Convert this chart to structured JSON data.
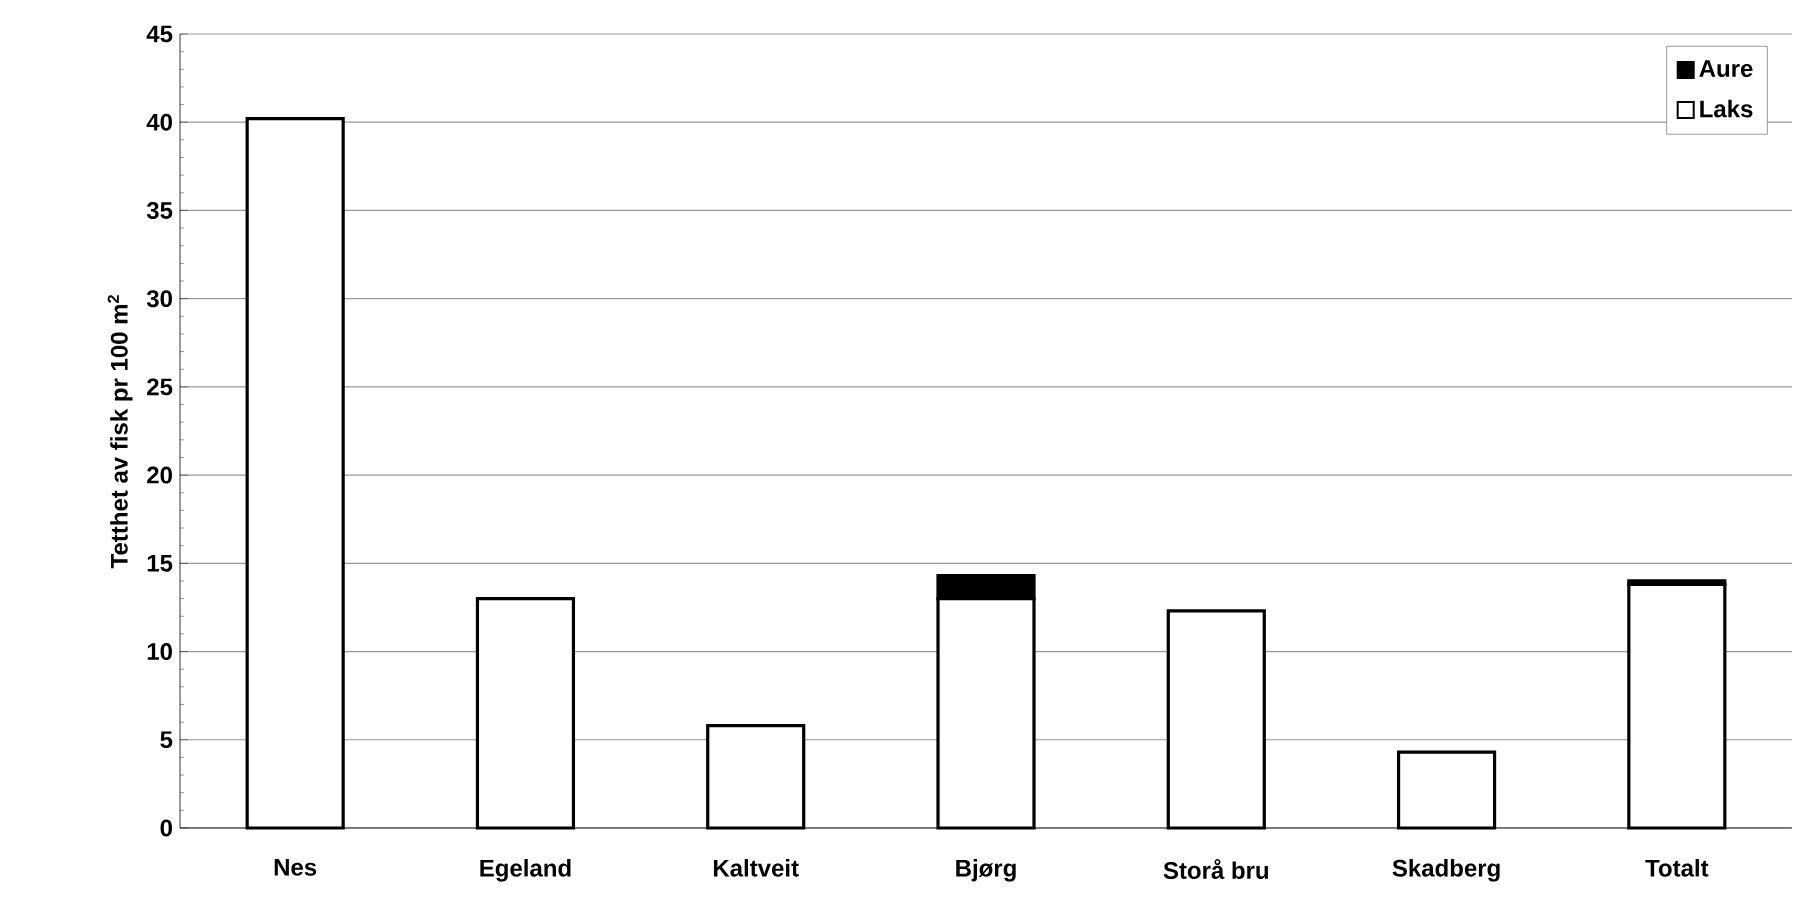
{
  "chart_data": {
    "type": "bar",
    "stacked": true,
    "ylabel": "Tetthet av fisk pr 100 m$^{2}$",
    "categories": [
      "Nes",
      "Egeland",
      "Kaltveit",
      "Bjørg",
      "Storå bru",
      "Skadberg",
      "Totalt"
    ],
    "series": [
      {
        "name": "Laks",
        "color": "#ffffff",
        "values": [
          40.2,
          13.0,
          5.8,
          13.0,
          12.3,
          4.3,
          13.8
        ]
      },
      {
        "name": "Aure",
        "color": "#000000",
        "values": [
          0,
          0,
          0,
          1.3,
          0,
          0,
          0.2
        ]
      }
    ],
    "ylim": [
      0,
      45
    ],
    "yticks": [
      0,
      5,
      10,
      15,
      20,
      25,
      30,
      35,
      40,
      45
    ],
    "grid": "y",
    "legend": "top right"
  }
}
